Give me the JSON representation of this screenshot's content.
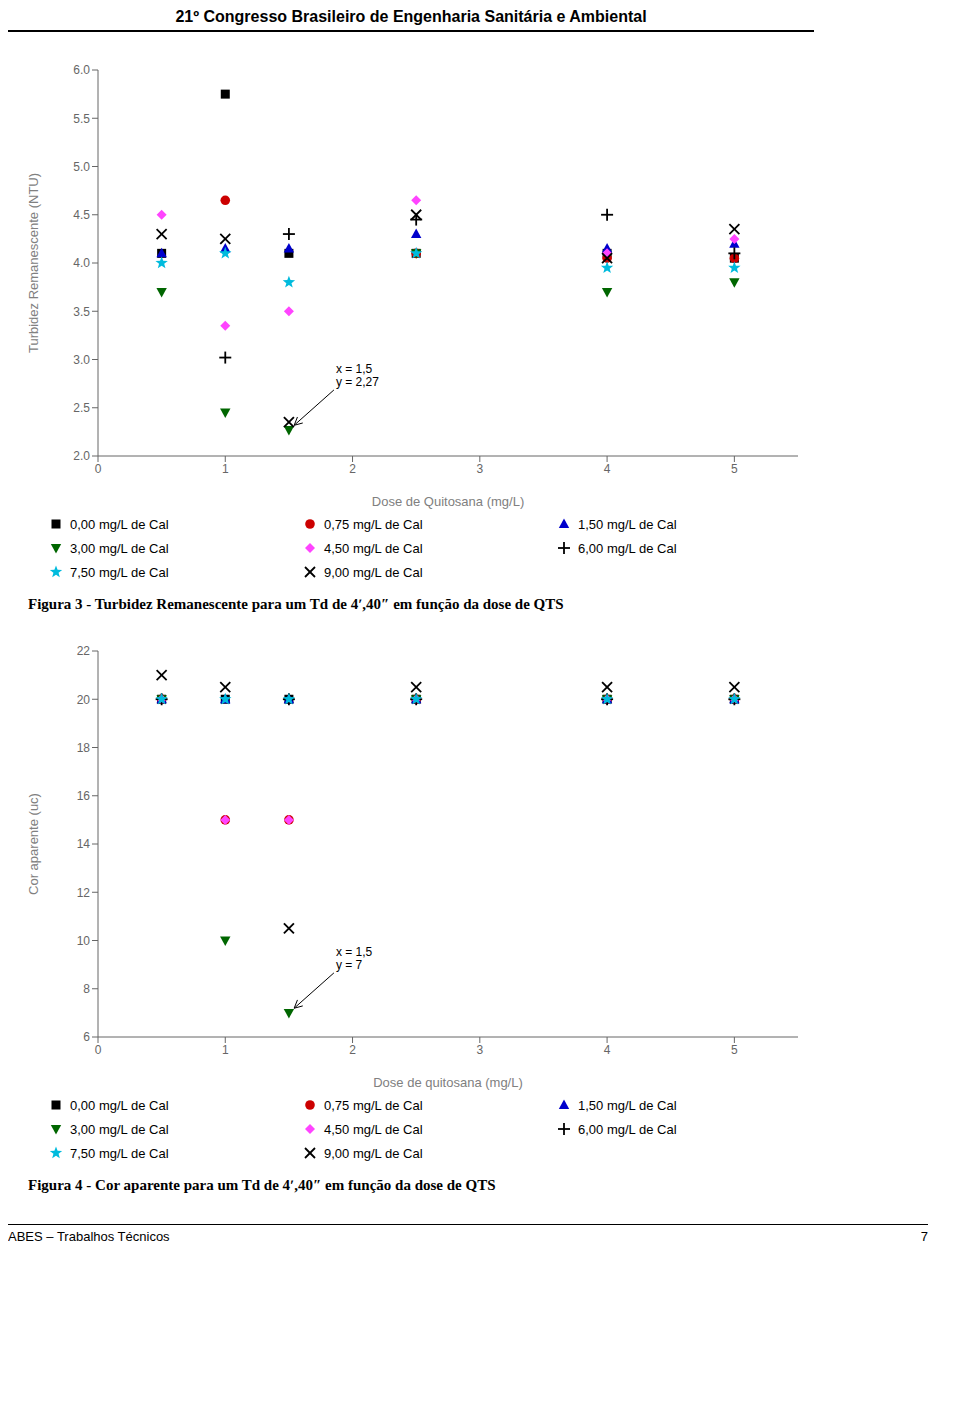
{
  "title": "21º Congresso Brasileiro de Engenharia Sanitária e Ambiental",
  "footer": "ABES – Trabalhos Técnicos",
  "page_number": "7",
  "chart_data": [
    {
      "type": "scatter",
      "title": "Figura 3 - Turbidez Remanescente para um Td de 4ʹ,40″ em função da dose de QTS",
      "xlabel": "Dose de Quitosana (mg/L)",
      "ylabel": "Turbidez Remanescente (NTU)",
      "xlim": [
        0,
        5.5
      ],
      "ylim": [
        2.0,
        6.0
      ],
      "xticks": [
        0,
        1,
        2,
        3,
        4,
        5
      ],
      "yticks": [
        {
          "value": 2.0,
          "label": "2.0"
        },
        {
          "value": 2.5,
          "label": "2.5"
        },
        {
          "value": 3.0,
          "label": "3.0"
        },
        {
          "value": 3.5,
          "label": "3.5"
        },
        {
          "value": 4.0,
          "label": "4.0"
        },
        {
          "value": 4.5,
          "label": "4.5"
        },
        {
          "value": 5.0,
          "label": "5.0"
        },
        {
          "value": 5.5,
          "label": "5.5"
        },
        {
          "value": 6.0,
          "label": "6.0"
        }
      ],
      "grid": false,
      "legend": "bottom",
      "annotations": [
        {
          "text": "x = 1,5\ny = 2,27",
          "x": 1.5,
          "y": 2.27
        }
      ],
      "series": [
        {
          "name": "0,00 mg/L de Cal",
          "color": "#000000",
          "marker": "square",
          "x": [
            0.5,
            1.0,
            1.5,
            2.5,
            4.0,
            5.0
          ],
          "values": [
            4.1,
            5.75,
            4.1,
            4.1,
            4.1,
            4.05
          ]
        },
        {
          "name": "0,75 mg/L de Cal",
          "color": "#cc0000",
          "marker": "circle",
          "x": [
            1.0,
            2.5,
            4.0,
            5.0
          ],
          "values": [
            4.65,
            4.1,
            4.05,
            4.05
          ]
        },
        {
          "name": "1,50 mg/L de Cal",
          "color": "#0000cc",
          "marker": "triangle-up",
          "x": [
            0.5,
            1.0,
            1.5,
            2.5,
            4.0,
            5.0
          ],
          "values": [
            4.1,
            4.15,
            4.15,
            4.3,
            4.15,
            4.2
          ]
        },
        {
          "name": "3,00 mg/L de Cal",
          "color": "#006600",
          "marker": "triangle-down",
          "x": [
            0.5,
            1.0,
            1.5,
            2.5,
            4.0,
            5.0
          ],
          "values": [
            3.7,
            2.45,
            2.27,
            4.1,
            3.7,
            3.8
          ]
        },
        {
          "name": "4,50 mg/L de Cal",
          "color": "#ff44ff",
          "marker": "diamond",
          "x": [
            0.5,
            1.0,
            1.5,
            2.5,
            4.0,
            5.0
          ],
          "values": [
            4.5,
            3.35,
            3.5,
            4.65,
            4.1,
            4.25
          ]
        },
        {
          "name": "6,00 mg/L de Cal",
          "color": "#000000",
          "marker": "plus",
          "x": [
            1.0,
            1.5,
            2.5,
            4.0,
            5.0
          ],
          "values": [
            3.02,
            4.3,
            4.45,
            4.5,
            4.1
          ]
        },
        {
          "name": "7,50 mg/L de Cal",
          "color": "#00bbdd",
          "marker": "star",
          "x": [
            0.5,
            1.0,
            1.5,
            2.5,
            4.0,
            5.0
          ],
          "values": [
            4.0,
            4.1,
            3.8,
            4.1,
            3.95,
            3.95
          ]
        },
        {
          "name": "9,00 mg/L de Cal",
          "color": "#000000",
          "marker": "x",
          "x": [
            0.5,
            1.0,
            1.5,
            2.5,
            4.0,
            5.0
          ],
          "values": [
            4.3,
            4.25,
            2.35,
            4.5,
            4.05,
            4.35
          ]
        }
      ]
    },
    {
      "type": "scatter",
      "title": "Figura 4 - Cor aparente para um Td de 4ʹ,40″ em função da dose de QTS",
      "xlabel": "Dose de quitosana (mg/L)",
      "ylabel": "Cor aparente (uc)",
      "xlim": [
        0,
        5.5
      ],
      "ylim": [
        6,
        22
      ],
      "xticks": [
        0,
        1,
        2,
        3,
        4,
        5
      ],
      "yticks": [
        6,
        8,
        10,
        12,
        14,
        16,
        18,
        20,
        22
      ],
      "grid": false,
      "legend": "bottom",
      "annotations": [
        {
          "text": "x = 1,5\ny = 7",
          "x": 1.5,
          "y": 7.0
        }
      ],
      "series": [
        {
          "name": "0,00 mg/L de Cal",
          "color": "#000000",
          "marker": "square",
          "x": [
            0.5,
            1.0,
            1.5,
            2.5,
            4.0,
            5.0
          ],
          "values": [
            20.0,
            20.0,
            20.0,
            20.0,
            20.0,
            20.0
          ]
        },
        {
          "name": "0,75 mg/L de Cal",
          "color": "#cc0000",
          "marker": "circle",
          "x": [
            0.5,
            1.0,
            1.5,
            2.5,
            4.0,
            5.0
          ],
          "values": [
            20.0,
            15.0,
            15.0,
            20.0,
            20.0,
            20.0
          ]
        },
        {
          "name": "1,50 mg/L de Cal",
          "color": "#0000cc",
          "marker": "triangle-up",
          "x": [
            0.5,
            1.0,
            1.5,
            2.5,
            4.0,
            5.0
          ],
          "values": [
            20.0,
            20.0,
            20.0,
            20.0,
            20.0,
            20.0
          ]
        },
        {
          "name": "3,00 mg/L de Cal",
          "color": "#006600",
          "marker": "triangle-down",
          "x": [
            0.5,
            1.0,
            1.5,
            2.5,
            4.0,
            5.0
          ],
          "values": [
            20.0,
            10.0,
            7.0,
            20.0,
            20.0,
            20.0
          ]
        },
        {
          "name": "4,50 mg/L de Cal",
          "color": "#ff44ff",
          "marker": "diamond",
          "x": [
            0.5,
            1.0,
            1.5,
            2.5,
            4.0,
            5.0
          ],
          "values": [
            20.0,
            15.0,
            15.0,
            20.0,
            20.0,
            20.0
          ]
        },
        {
          "name": "6,00 mg/L de Cal",
          "color": "#000000",
          "marker": "plus",
          "x": [
            0.5,
            1.5,
            2.5,
            4.0,
            5.0
          ],
          "values": [
            20.0,
            20.0,
            20.0,
            20.0,
            20.0
          ]
        },
        {
          "name": "7,50 mg/L de Cal",
          "color": "#00bbdd",
          "marker": "star",
          "x": [
            0.5,
            1.0,
            1.5,
            2.5,
            4.0,
            5.0
          ],
          "values": [
            20.0,
            20.0,
            20.0,
            20.0,
            20.0,
            20.0
          ]
        },
        {
          "name": "9,00 mg/L de Cal",
          "color": "#000000",
          "marker": "x",
          "x": [
            0.5,
            1.0,
            1.5,
            2.5,
            4.0,
            5.0
          ],
          "values": [
            21.0,
            20.5,
            10.5,
            20.5,
            20.5,
            20.5
          ]
        }
      ]
    }
  ]
}
